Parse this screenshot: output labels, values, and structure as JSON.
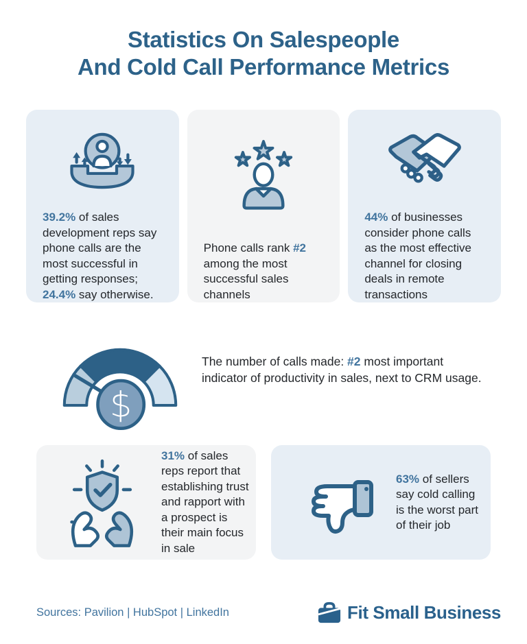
{
  "title": {
    "line1": "Statistics On Salespeople",
    "line2": "And Cold Call Performance Metrics"
  },
  "colors": {
    "title_blue": "#2D6289",
    "accent_blue": "#41749E",
    "icon_outline": "#2D5F87",
    "icon_fill": "#B3C7D8",
    "icon_fill_light": "#D5E4F0",
    "card_blue_bg": "#E7EEF5",
    "card_gray_bg": "#F3F4F5",
    "body_text": "#24272B"
  },
  "stat_cards": [
    {
      "icon": "phone-handset-person-arrows",
      "bg": "blue",
      "segments": [
        {
          "t": "39.2%",
          "b": true
        },
        {
          "t": " of sales development reps say phone calls are the most successful in getting responses; "
        },
        {
          "t": "24.4%",
          "b": true
        },
        {
          "t": " say otherwise."
        }
      ]
    },
    {
      "icon": "salesperson-three-stars",
      "bg": "gray",
      "segments": [
        {
          "t": "Phone calls rank "
        },
        {
          "t": "#2",
          "b": true
        },
        {
          "t": " among the most successful sales channels"
        }
      ]
    },
    {
      "icon": "handshake",
      "bg": "blue",
      "segments": [
        {
          "t": "44%",
          "b": true
        },
        {
          "t": " of businesses consider phone calls as the most effective channel for closing deals in remote transactions"
        }
      ]
    }
  ],
  "gauge_row": {
    "icon": "speedometer-dollar-gauge",
    "segments": [
      {
        "t": "The number of calls made: "
      },
      {
        "t": "#2",
        "b": true
      },
      {
        "t": " most important indicator of productivity in sales, next to CRM usage."
      }
    ]
  },
  "bottom_cards": [
    {
      "icon": "hands-holding-shield-check",
      "bg": "gray",
      "segments": [
        {
          "t": "31%",
          "b": true
        },
        {
          "t": " of sales reps report that establishing trust and rapport with a prospect is their main focus in sale"
        }
      ]
    },
    {
      "icon": "thumbs-down",
      "bg": "blue",
      "segments": [
        {
          "t": "63%",
          "b": true
        },
        {
          "t": " of sellers say cold calling is the worst part of their job"
        }
      ]
    }
  ],
  "footer": {
    "sources": "Sources: Pavilion | HubSpot | LinkedIn",
    "brand": "Fit Small Business",
    "brand_icon": "briefcase-icon"
  }
}
